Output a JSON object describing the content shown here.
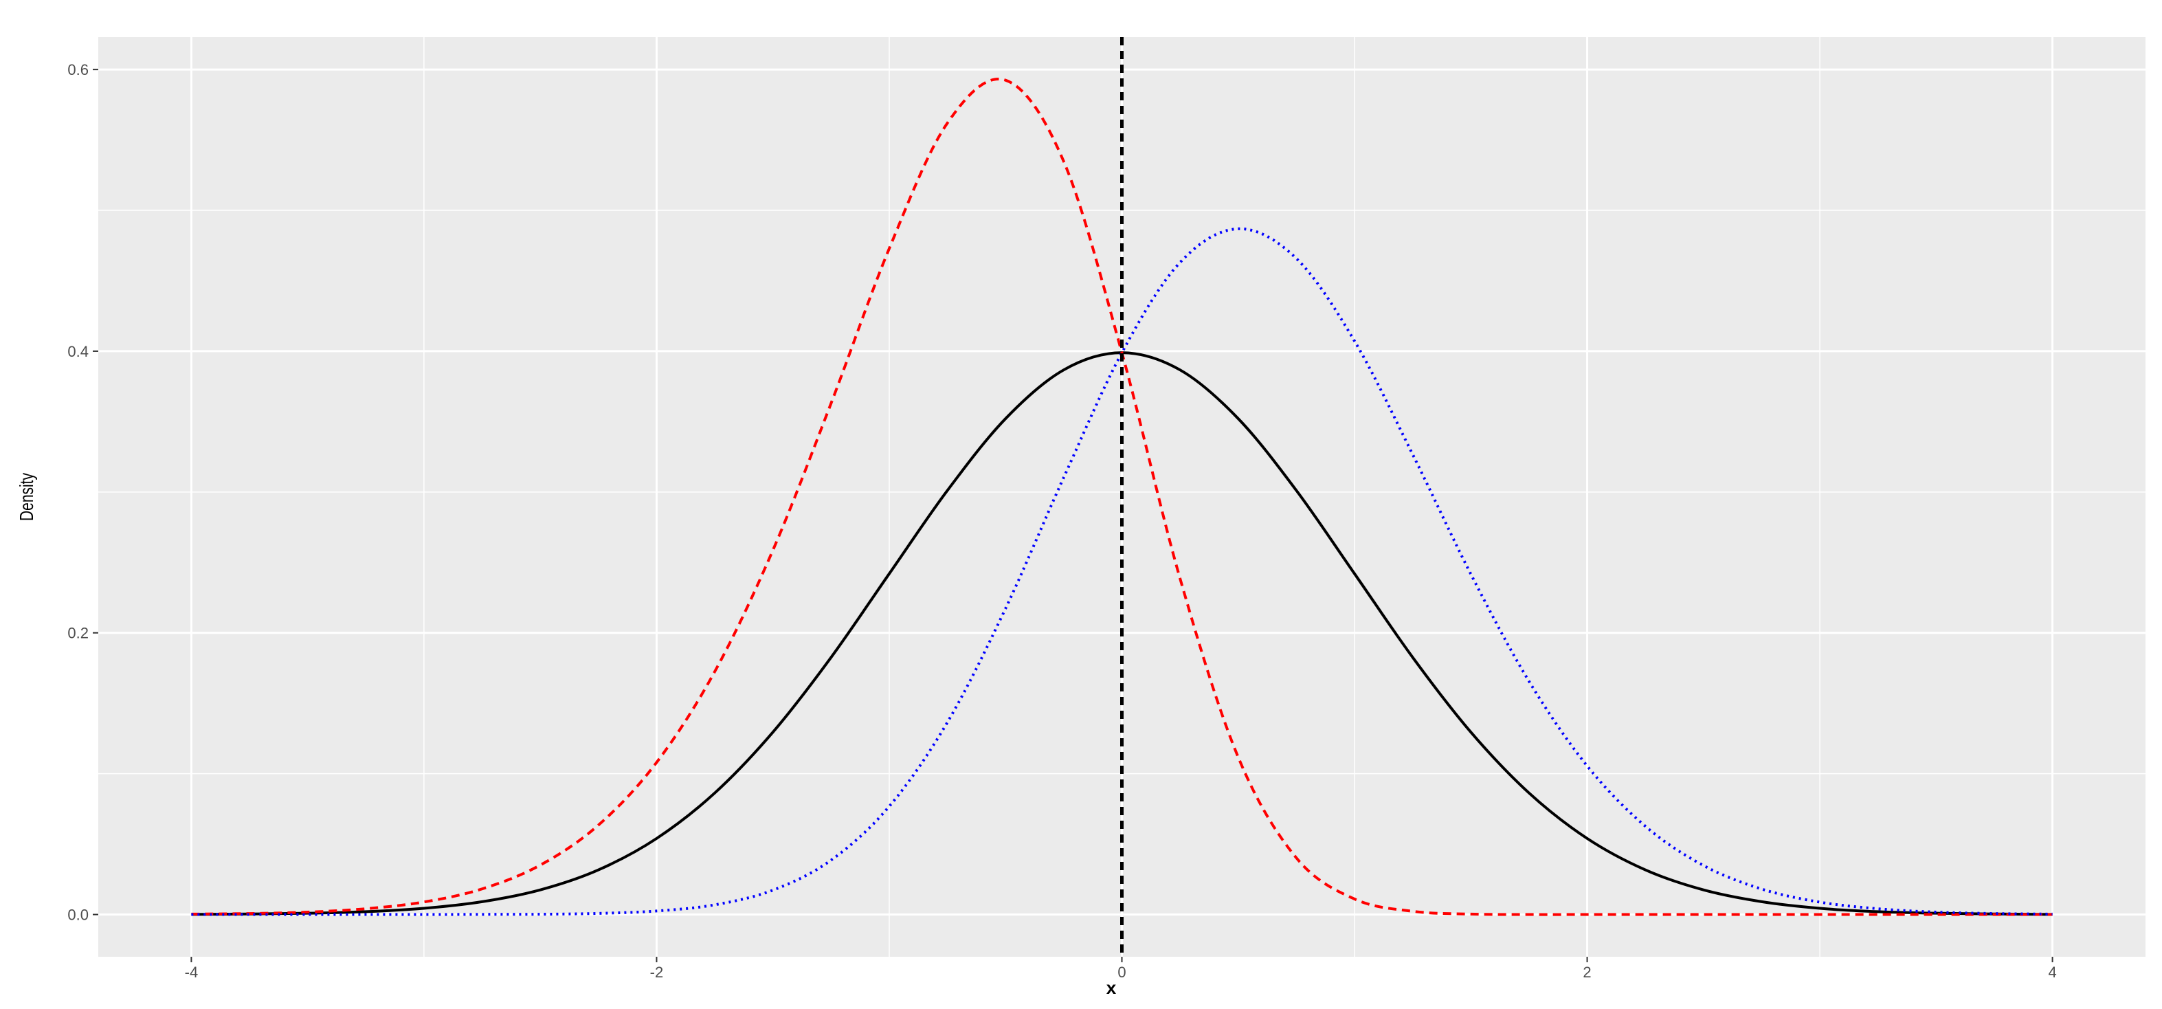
{
  "chart_data": {
    "type": "line",
    "x_label": "x",
    "y_label": "Density",
    "x": [
      -4,
      -3.75,
      -3.5,
      -3.25,
      -3,
      -2.75,
      -2.5,
      -2.25,
      -2,
      -1.75,
      -1.5,
      -1.25,
      -1,
      -0.75,
      -0.5,
      -0.25,
      0,
      0.25,
      0.5,
      0.75,
      1,
      1.25,
      1.5,
      1.75,
      2,
      2.25,
      2.5,
      2.75,
      3,
      3.25,
      3.5,
      3.75,
      4
    ],
    "series": [
      {
        "color": "#000000",
        "linetype": "solid",
        "values": [
          0.0001,
          0.0004,
          0.0009,
          0.002,
          0.0044,
          0.0091,
          0.0175,
          0.0317,
          0.054,
          0.0863,
          0.1295,
          0.1826,
          0.242,
          0.3011,
          0.3521,
          0.3867,
          0.3989,
          0.3867,
          0.3521,
          0.3011,
          0.242,
          0.1826,
          0.1295,
          0.0863,
          0.054,
          0.0317,
          0.0175,
          0.0091,
          0.0044,
          0.002,
          0.0009,
          0.0004,
          0.0001
        ]
      },
      {
        "color": "#ff0000",
        "linetype": "dashed",
        "values": [
          0.0003,
          0.0007,
          0.0017,
          0.0041,
          0.0089,
          0.0182,
          0.0351,
          0.0635,
          0.108,
          0.1725,
          0.2587,
          0.363,
          0.4729,
          0.562,
          0.5924,
          0.5347,
          0.3989,
          0.2386,
          0.1117,
          0.0402,
          0.011,
          0.0023,
          0.0003,
          0,
          0,
          0,
          0,
          0,
          0,
          0,
          0,
          0,
          0
        ]
      },
      {
        "color": "#0000ff",
        "linetype": "dotted",
        "values": [
          0,
          0,
          0,
          0,
          0,
          0.0001,
          0.0002,
          0.0008,
          0.0025,
          0.0069,
          0.0173,
          0.0386,
          0.0768,
          0.1365,
          0.2173,
          0.3103,
          0.3989,
          0.463,
          0.4869,
          0.4658,
          0.4072,
          0.3267,
          0.2417,
          0.1656,
          0.1055,
          0.0627,
          0.0348,
          0.0181,
          0.0088,
          0.0041,
          0.0017,
          0.0007,
          0.0003
        ]
      }
    ],
    "vline": 0,
    "xlim": [
      -4.4,
      4.4
    ],
    "ylim": [
      -0.03,
      0.623
    ],
    "xticks": [
      -4,
      -2,
      0,
      2,
      4
    ],
    "yticks": [
      {
        "value": 0,
        "label": "0.0"
      },
      0.2,
      0.4,
      0.6
    ],
    "x_minor_ticks": [
      -3,
      -1,
      1,
      3
    ],
    "y_minor_ticks": [
      0.1,
      0.3,
      0.5
    ],
    "grid": true
  }
}
